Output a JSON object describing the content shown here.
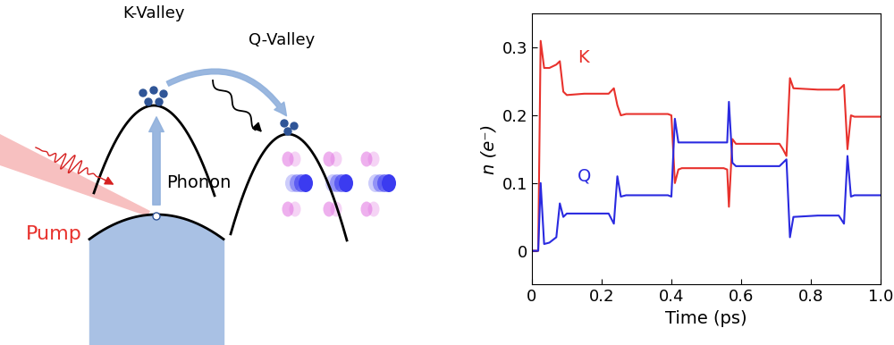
{
  "diagram": {
    "labels": {
      "k_valley": "K-Valley",
      "q_valley": "Q-Valley",
      "phonon": "Phonon",
      "pump": "Pump"
    }
  },
  "chart_data": {
    "type": "line",
    "x_label": "Time (ps)",
    "y_label": "n (e⁻)",
    "x": [
      0,
      0.018,
      0.025,
      0.035,
      0.05,
      0.07,
      0.08,
      0.09,
      0.1,
      0.15,
      0.22,
      0.235,
      0.245,
      0.255,
      0.27,
      0.33,
      0.39,
      0.4,
      0.41,
      0.42,
      0.43,
      0.5,
      0.55,
      0.56,
      0.565,
      0.575,
      0.585,
      0.65,
      0.71,
      0.72,
      0.73,
      0.74,
      0.75,
      0.82,
      0.88,
      0.895,
      0.905,
      0.915,
      0.925,
      1.0
    ],
    "series": [
      {
        "name": "K",
        "color": "#e8322d",
        "values": [
          0,
          0.0,
          0.31,
          0.27,
          0.27,
          0.275,
          0.28,
          0.235,
          0.23,
          0.232,
          0.232,
          0.24,
          0.215,
          0.2,
          0.202,
          0.202,
          0.202,
          0.2,
          0.1,
          0.12,
          0.122,
          0.122,
          0.122,
          0.12,
          0.065,
          0.165,
          0.158,
          0.158,
          0.158,
          0.15,
          0.14,
          0.255,
          0.24,
          0.238,
          0.238,
          0.245,
          0.15,
          0.2,
          0.198,
          0.198
        ]
      },
      {
        "name": "Q",
        "color": "#2a2ae0",
        "values": [
          0,
          0.0,
          0.1,
          0.01,
          0.012,
          0.02,
          0.07,
          0.05,
          0.055,
          0.055,
          0.055,
          0.04,
          0.11,
          0.08,
          0.082,
          0.082,
          0.082,
          0.08,
          0.195,
          0.16,
          0.16,
          0.16,
          0.16,
          0.16,
          0.22,
          0.13,
          0.125,
          0.125,
          0.125,
          0.13,
          0.135,
          0.02,
          0.05,
          0.052,
          0.052,
          0.04,
          0.14,
          0.08,
          0.082,
          0.082
        ]
      }
    ],
    "xlim": [
      0,
      1.0
    ],
    "xticks": [
      0,
      0.2,
      0.4,
      0.6,
      0.8,
      1.0
    ],
    "ylim": [
      -0.05,
      0.35
    ],
    "yticks": [
      0,
      0.1,
      0.2,
      0.3
    ],
    "grid": false
  }
}
